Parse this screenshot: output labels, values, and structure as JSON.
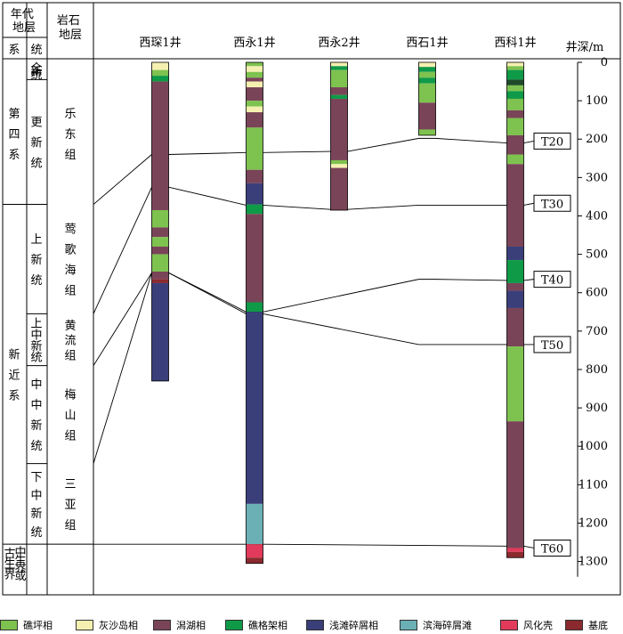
{
  "header": {
    "era_label": "年代地层",
    "system_label": "系",
    "series_label": "统",
    "lith_label": "岩石地层",
    "depth_label": "井深/m"
  },
  "depth_ticks": [
    "0",
    "100",
    "200",
    "300",
    "400",
    "500",
    "600",
    "700",
    "800",
    "900",
    "1000",
    "1100",
    "1200",
    "1300"
  ],
  "strat": {
    "systems": [
      {
        "name": "第四系",
        "top": 0,
        "bottom": 370
      },
      {
        "name": "新近系",
        "top": 370,
        "bottom": 1255
      },
      {
        "name": "中生界或古生界",
        "top": 1255,
        "bottom": 1355
      }
    ],
    "series": [
      {
        "name": "全新统",
        "top": 0,
        "bottom": 45
      },
      {
        "name": "更新统",
        "top": 45,
        "bottom": 370
      },
      {
        "name": "上新统",
        "top": 370,
        "bottom": 655
      },
      {
        "name": "上中新统",
        "top": 655,
        "bottom": 790
      },
      {
        "name": "中中新统",
        "top": 790,
        "bottom": 1045
      },
      {
        "name": "下中新统",
        "top": 1045,
        "bottom": 1255
      },
      {
        "name": "",
        "top": 1255,
        "bottom": 1355
      }
    ],
    "formations": [
      {
        "name": "乐东组",
        "top": 0,
        "bottom": 370
      },
      {
        "name": "莺歌海组",
        "top": 370,
        "bottom": 655
      },
      {
        "name": "黄流组",
        "top": 655,
        "bottom": 790
      },
      {
        "name": "梅山组",
        "top": 790,
        "bottom": 1045
      },
      {
        "name": "三亚组",
        "top": 1045,
        "bottom": 1255
      },
      {
        "name": "",
        "top": 1255,
        "bottom": 1355
      }
    ]
  },
  "wells": [
    {
      "name": "西琛1井",
      "segments": [
        {
          "top": 0,
          "bottom": 20,
          "facies": "shoal"
        },
        {
          "top": 20,
          "bottom": 35,
          "facies": "reef_flat"
        },
        {
          "top": 35,
          "bottom": 50,
          "facies": "reef_frame"
        },
        {
          "top": 50,
          "bottom": 385,
          "facies": "lagoon"
        },
        {
          "top": 385,
          "bottom": 430,
          "facies": "reef_flat"
        },
        {
          "top": 430,
          "bottom": 455,
          "facies": "lagoon"
        },
        {
          "top": 455,
          "bottom": 480,
          "facies": "reef_flat"
        },
        {
          "top": 480,
          "bottom": 500,
          "facies": "lagoon"
        },
        {
          "top": 500,
          "bottom": 545,
          "facies": "reef_flat"
        },
        {
          "top": 545,
          "bottom": 565,
          "facies": "lagoon"
        },
        {
          "top": 565,
          "bottom": 575,
          "facies": "basement"
        },
        {
          "top": 575,
          "bottom": 830,
          "facies": "shallow_clastic"
        }
      ]
    },
    {
      "name": "西永1井",
      "segments": [
        {
          "top": 0,
          "bottom": 10,
          "facies": "reef_flat"
        },
        {
          "top": 10,
          "bottom": 25,
          "facies": "shoal"
        },
        {
          "top": 25,
          "bottom": 40,
          "facies": "reef_flat"
        },
        {
          "top": 40,
          "bottom": 50,
          "facies": "lagoon"
        },
        {
          "top": 50,
          "bottom": 65,
          "facies": "shoal"
        },
        {
          "top": 65,
          "bottom": 100,
          "facies": "lagoon"
        },
        {
          "top": 100,
          "bottom": 115,
          "facies": "reef_flat"
        },
        {
          "top": 115,
          "bottom": 130,
          "facies": "shoal"
        },
        {
          "top": 130,
          "bottom": 170,
          "facies": "lagoon"
        },
        {
          "top": 170,
          "bottom": 280,
          "facies": "reef_flat"
        },
        {
          "top": 280,
          "bottom": 315,
          "facies": "lagoon"
        },
        {
          "top": 315,
          "bottom": 370,
          "facies": "shallow_clastic"
        },
        {
          "top": 370,
          "bottom": 395,
          "facies": "reef_frame"
        },
        {
          "top": 395,
          "bottom": 625,
          "facies": "lagoon"
        },
        {
          "top": 625,
          "bottom": 650,
          "facies": "reef_frame"
        },
        {
          "top": 650,
          "bottom": 1150,
          "facies": "shallow_clastic"
        },
        {
          "top": 1150,
          "bottom": 1255,
          "facies": "coastal_clastic"
        },
        {
          "top": 1255,
          "bottom": 1290,
          "facies": "weathering_crust"
        },
        {
          "top": 1290,
          "bottom": 1305,
          "facies": "basement"
        }
      ]
    },
    {
      "name": "西永2井",
      "segments": [
        {
          "top": 0,
          "bottom": 10,
          "facies": "shoal"
        },
        {
          "top": 10,
          "bottom": 20,
          "facies": "reef_frame"
        },
        {
          "top": 20,
          "bottom": 65,
          "facies": "reef_flat"
        },
        {
          "top": 65,
          "bottom": 85,
          "facies": "lagoon"
        },
        {
          "top": 85,
          "bottom": 95,
          "facies": "reef_frame"
        },
        {
          "top": 95,
          "bottom": 255,
          "facies": "lagoon"
        },
        {
          "top": 255,
          "bottom": 265,
          "facies": "reef_flat"
        },
        {
          "top": 265,
          "bottom": 275,
          "facies": "shoal"
        },
        {
          "top": 275,
          "bottom": 385,
          "facies": "lagoon"
        }
      ]
    },
    {
      "name": "西石1井",
      "segments": [
        {
          "top": 0,
          "bottom": 12,
          "facies": "shoal"
        },
        {
          "top": 12,
          "bottom": 25,
          "facies": "reef_frame"
        },
        {
          "top": 25,
          "bottom": 40,
          "facies": "reef_flat"
        },
        {
          "top": 40,
          "bottom": 55,
          "facies": "reef_frame"
        },
        {
          "top": 55,
          "bottom": 105,
          "facies": "reef_flat"
        },
        {
          "top": 105,
          "bottom": 175,
          "facies": "lagoon"
        },
        {
          "top": 175,
          "bottom": 190,
          "facies": "reef_flat"
        }
      ]
    },
    {
      "name": "西科1井",
      "segments": [
        {
          "top": 0,
          "bottom": 10,
          "facies": "shoal"
        },
        {
          "top": 10,
          "bottom": 20,
          "facies": "reef_flat"
        },
        {
          "top": 20,
          "bottom": 45,
          "facies": "reef_frame"
        },
        {
          "top": 45,
          "bottom": 60,
          "facies": "dark_green"
        },
        {
          "top": 60,
          "bottom": 75,
          "facies": "reef_flat"
        },
        {
          "top": 75,
          "bottom": 95,
          "facies": "reef_frame"
        },
        {
          "top": 95,
          "bottom": 125,
          "facies": "reef_flat"
        },
        {
          "top": 125,
          "bottom": 145,
          "facies": "lagoon"
        },
        {
          "top": 145,
          "bottom": 190,
          "facies": "reef_flat"
        },
        {
          "top": 190,
          "bottom": 240,
          "facies": "lagoon"
        },
        {
          "top": 240,
          "bottom": 265,
          "facies": "reef_flat"
        },
        {
          "top": 265,
          "bottom": 480,
          "facies": "lagoon"
        },
        {
          "top": 480,
          "bottom": 515,
          "facies": "shallow_clastic"
        },
        {
          "top": 515,
          "bottom": 575,
          "facies": "reef_frame"
        },
        {
          "top": 575,
          "bottom": 595,
          "facies": "lagoon"
        },
        {
          "top": 595,
          "bottom": 640,
          "facies": "shallow_clastic"
        },
        {
          "top": 640,
          "bottom": 740,
          "facies": "lagoon"
        },
        {
          "top": 740,
          "bottom": 935,
          "facies": "reef_flat"
        },
        {
          "top": 935,
          "bottom": 1265,
          "facies": "lagoon"
        },
        {
          "top": 1265,
          "bottom": 1275,
          "facies": "weathering_crust"
        },
        {
          "top": 1275,
          "bottom": 1290,
          "facies": "basement"
        }
      ]
    }
  ],
  "horizons": [
    {
      "name": "T20",
      "depths": [
        240,
        235,
        232,
        198,
        210
      ],
      "label_depth": 205
    },
    {
      "name": "T30",
      "depths": [
        325,
        372,
        383,
        372,
        372
      ],
      "label_depth": 367
    },
    {
      "name": "T40",
      "depths": [
        548,
        650,
        null,
        565,
        568
      ],
      "label_depth": 565
    },
    {
      "name": "T50",
      "depths": [
        548,
        655,
        null,
        735,
        735
      ],
      "label_depth": 735
    },
    {
      "name": "T60",
      "depths": [
        1255,
        1255,
        null,
        null,
        1260
      ],
      "label_depth": 1265
    }
  ],
  "facies": {
    "reef_flat": {
      "label": "礁坪相",
      "color": "#7ec24f"
    },
    "shoal": {
      "label": "灰沙岛相",
      "color": "#f5f0b0"
    },
    "lagoon": {
      "label": "潟湖相",
      "color": "#7a4458"
    },
    "reef_frame": {
      "label": "礁格架相",
      "color": "#0f9a48"
    },
    "shallow_clastic": {
      "label": "浅滩碎屑相",
      "color": "#3a3f7a"
    },
    "coastal_clastic": {
      "label": "滨海碎屑滩",
      "color": "#6ab0b5"
    },
    "weathering_crust": {
      "label": "风化壳",
      "color": "#e23a5a"
    },
    "basement": {
      "label": "基底",
      "color": "#8a2a2e"
    },
    "dark_green": {
      "label": "",
      "color": "#1e4a2a"
    }
  },
  "legend_order": [
    "reef_flat",
    "shoal",
    "lagoon",
    "reef_frame",
    "shallow_clastic",
    "coastal_clastic",
    "weathering_crust",
    "basement"
  ]
}
